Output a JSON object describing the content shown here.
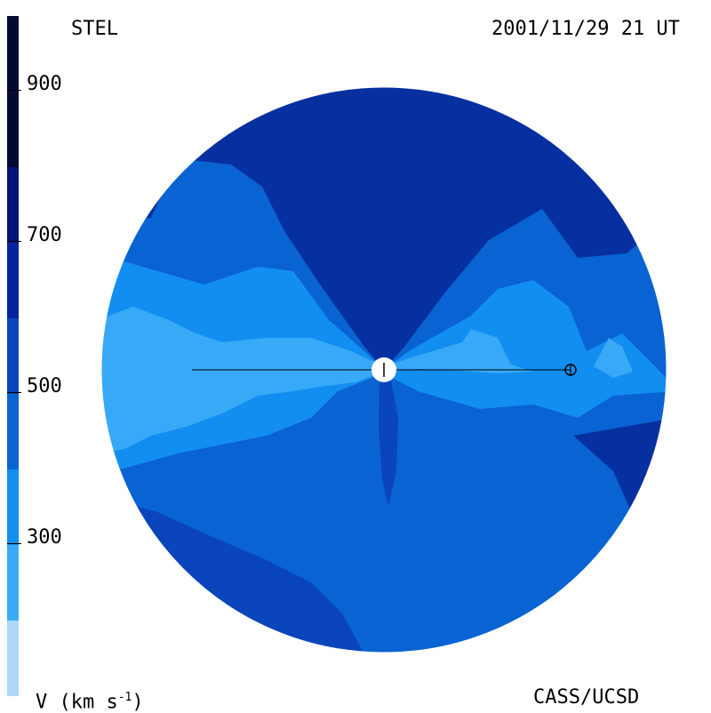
{
  "header": {
    "source_label": "STEL",
    "timestamp": "2001/11/29 21 UT"
  },
  "footer": {
    "unit_label_prefix": "V (km s",
    "unit_label_exp": "-1",
    "unit_label_suffix": ")",
    "credit": "CASS/UCSD"
  },
  "colorbar": {
    "ticks": [
      "900",
      "700",
      "500",
      "300"
    ],
    "tick_values": [
      900,
      700,
      500,
      300
    ],
    "range": [
      100,
      1000
    ],
    "colors": [
      "#add8f7",
      "#3aabf7",
      "#138ff0",
      "#0a63d2",
      "#0a45bc",
      "#05239e",
      "#031474",
      "#020a33"
    ]
  },
  "map_colors": {
    "v250": "#38a9f7",
    "v350": "#128ef0",
    "v450": "#0a63d2",
    "v550": "#0a45bc",
    "v650": "#06309f",
    "sun": "#ffffff",
    "line": "#000000"
  }
}
